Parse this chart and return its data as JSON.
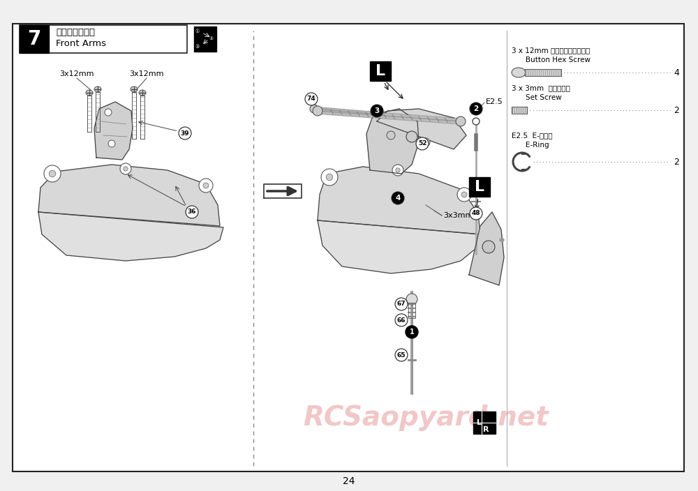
{
  "page_number": "24",
  "step_number": "7",
  "step_title_jp": "フロントアーム",
  "step_title_en": "Front Arms",
  "background_color": "#f5f5f5",
  "border_color": "#333333",
  "watermark_text": "RCSaopyard.net",
  "watermark_color_r": 0.9,
  "watermark_color_g": 0.6,
  "watermark_color_b": 0.6,
  "watermark_alpha": 0.55,
  "parts": [
    {
      "name_jp": "3 x 12mm ボタンヘックスビス",
      "name_en": "Button Hex Screw",
      "qty": "4"
    },
    {
      "name_jp": "3 x 3mm  セットビス",
      "name_en": "Set Screw",
      "qty": "2"
    },
    {
      "name_jp": "E2.5  E-リング",
      "name_en": "E-Ring",
      "qty": "2"
    }
  ]
}
